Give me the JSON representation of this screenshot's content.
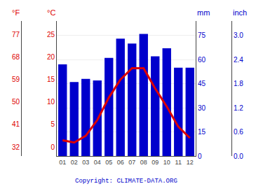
{
  "chart_data": {
    "type": "bar",
    "categories": [
      "01",
      "02",
      "03",
      "04",
      "05",
      "06",
      "07",
      "08",
      "09",
      "10",
      "11",
      "12"
    ],
    "series": [
      {
        "type": "bar",
        "color": "#0000cc",
        "values": [
          57,
          46,
          48,
          47,
          61,
          73,
          70,
          76,
          62,
          67,
          55,
          55
        ]
      },
      {
        "type": "line",
        "color": "#dd0000",
        "axis": "y2",
        "values": [
          1.5,
          1.0,
          2.5,
          6.0,
          11.0,
          15.0,
          17.5,
          17.5,
          13.0,
          9.0,
          4.5,
          2.0
        ]
      }
    ],
    "ylim": [
      0,
      84
    ],
    "yticks": [
      0,
      15,
      30,
      45,
      60,
      75
    ],
    "ylabel": "mm",
    "y3ticks": [
      {
        "value": 0,
        "label": "0.0"
      },
      {
        "value": 15,
        "label": "0.6"
      },
      {
        "value": 30,
        "label": "1.2"
      },
      {
        "value": 45,
        "label": "1.8"
      },
      {
        "value": 60,
        "label": "2.4"
      },
      {
        "value": 75,
        "label": "3.0"
      }
    ],
    "y3label": "inch",
    "y2lim": [
      -2,
      28
    ],
    "y2ticks": [
      0,
      5,
      10,
      15,
      20,
      25
    ],
    "y2label": "°C",
    "y4ticks": [
      {
        "value": 0,
        "label": "32"
      },
      {
        "value": 5,
        "label": "41"
      },
      {
        "value": 10,
        "label": "50"
      },
      {
        "value": 15,
        "label": "59"
      },
      {
        "value": 20,
        "label": "68"
      },
      {
        "value": 25,
        "label": "77"
      }
    ],
    "y4label": "°F",
    "grid": true,
    "annotations": [
      "Copyright: CLIMATE-DATA.ORG"
    ]
  }
}
